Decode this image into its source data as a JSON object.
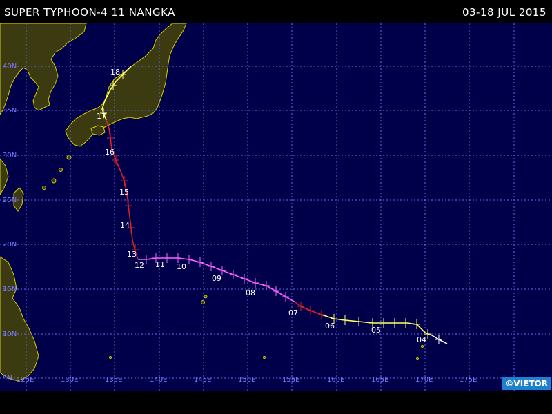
{
  "header": {
    "title": "SUPER TYPHOON-4 11 NANGKA",
    "date_range": "03-18 JUL 2015"
  },
  "map": {
    "ocean_color": "#00004a",
    "land_color": "#3b3a10",
    "coast_color": "#d8d000",
    "grid_color": "#6a6af0",
    "lat_labels": [
      "40N",
      "35N",
      "30N",
      "25N",
      "20N",
      "15N",
      "10N",
      "5N"
    ],
    "lon_labels": [
      "125E",
      "130E",
      "135E",
      "140E",
      "145E",
      "150E",
      "155E",
      "160E",
      "165E",
      "170E",
      "175E"
    ],
    "day_labels": [
      "04",
      "05",
      "06",
      "07",
      "08",
      "09",
      "10",
      "11",
      "12",
      "13",
      "14",
      "15",
      "16",
      "17",
      "18"
    ]
  },
  "track": {
    "colors": {
      "depression": "#ffffff",
      "storm": "#ffff66",
      "typhoon": "#e02020",
      "super_typhoon": "#ff60ff"
    }
  },
  "credit": "©VIETOR"
}
